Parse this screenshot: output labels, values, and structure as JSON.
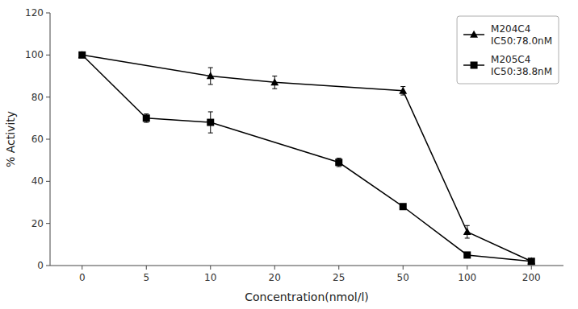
{
  "chart_data": {
    "type": "line",
    "x_label": "Concentration(nmol/l)",
    "y_label": "% Activity",
    "categories": [
      0,
      5,
      10,
      20,
      25,
      50,
      100,
      200
    ],
    "series": [
      {
        "name": "M204C4\nIC50:78.0nM",
        "color": "#000000",
        "marker": "triangle",
        "line_style": "solid",
        "x": [
          0,
          10,
          20,
          50,
          100,
          200
        ],
        "values": [
          100,
          90,
          87,
          83,
          16,
          2
        ],
        "errors": [
          0,
          4,
          3,
          2,
          3,
          1
        ]
      },
      {
        "name": "M205C4\nIC50:38.8nM",
        "color": "#000000",
        "marker": "square",
        "line_style": "solid",
        "x": [
          0,
          5,
          10,
          25,
          50,
          100,
          200
        ],
        "values": [
          100,
          70,
          68,
          49,
          28,
          5,
          2
        ],
        "errors": [
          0,
          2,
          5,
          2,
          1,
          1,
          1
        ]
      }
    ],
    "ylim": [
      0,
      120
    ],
    "yticks": [
      0,
      20,
      40,
      60,
      80,
      100,
      120
    ],
    "grid": false,
    "legend": "upper right"
  }
}
